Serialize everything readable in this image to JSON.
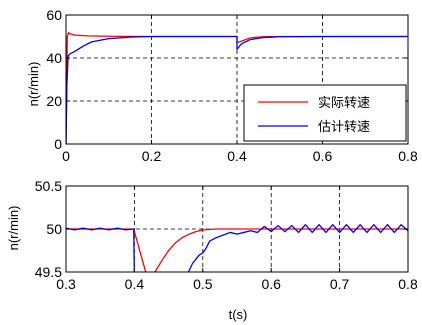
{
  "chart_data": [
    {
      "type": "line",
      "ylabel": "n(r/min)",
      "xlim": [
        0,
        0.8
      ],
      "ylim": [
        0,
        60
      ],
      "x_ticks": [
        "0",
        "0.2",
        "0.4",
        "0.6",
        "0.8"
      ],
      "y_ticks": [
        "0",
        "20",
        "40",
        "60"
      ],
      "grid": "dashed",
      "legend_position": "bottom-right",
      "series": [
        {
          "name": "实际转速",
          "color": "#ff0000",
          "x": [
            0,
            0.003,
            0.006,
            0.01,
            0.02,
            0.05,
            0.1,
            0.2,
            0.3,
            0.4,
            0.4,
            0.41,
            0.43,
            0.46,
            0.5,
            0.6,
            0.7,
            0.8
          ],
          "y": [
            0,
            50,
            51.8,
            51.2,
            50.7,
            50.3,
            50.1,
            50,
            50,
            50,
            47.2,
            47.8,
            49.3,
            49.9,
            50,
            50,
            50,
            50
          ]
        },
        {
          "name": "估计转速",
          "color": "#0000ff",
          "x": [
            0,
            0.002,
            0.005,
            0.01,
            0.02,
            0.04,
            0.06,
            0.1,
            0.15,
            0.2,
            0.3,
            0.4,
            0.4,
            0.41,
            0.43,
            0.46,
            0.5,
            0.6,
            0.7,
            0.8
          ],
          "y": [
            0,
            27,
            41,
            42,
            43,
            45.5,
            47.5,
            49,
            49.7,
            50,
            50,
            50,
            44,
            46.5,
            48.5,
            49.5,
            49.9,
            50,
            50,
            50
          ]
        }
      ]
    },
    {
      "type": "line",
      "xlabel": "t(s)",
      "ylabel": "n(r/min)",
      "xlim": [
        0.3,
        0.8
      ],
      "ylim": [
        49.5,
        50.5
      ],
      "x_ticks": [
        "0.3",
        "0.4",
        "0.5",
        "0.6",
        "0.7",
        "0.8"
      ],
      "y_ticks": [
        "49.5",
        "50",
        "50.5"
      ],
      "grid": "dashed",
      "series": [
        {
          "name": "实际转速",
          "color": "#ff0000",
          "x": [
            0.3,
            0.32,
            0.34,
            0.36,
            0.38,
            0.399,
            0.42,
            0.43,
            0.44,
            0.45,
            0.46,
            0.47,
            0.48,
            0.49,
            0.5,
            0.52,
            0.55,
            0.6,
            0.65,
            0.7,
            0.75,
            0.8
          ],
          "y": [
            50,
            50,
            50,
            50,
            50,
            50,
            49.4,
            49.5,
            49.63,
            49.75,
            49.84,
            49.9,
            49.94,
            49.97,
            49.99,
            50,
            50,
            50,
            50,
            50,
            50,
            50
          ]
        },
        {
          "name": "估计转速",
          "color": "#0000ff",
          "x": [
            0.3,
            0.3125,
            0.325,
            0.3375,
            0.35,
            0.3625,
            0.375,
            0.3875,
            0.399,
            0.4,
            0.476,
            0.485,
            0.495,
            0.5,
            0.505,
            0.51,
            0.52,
            0.53,
            0.54,
            0.55,
            0.56,
            0.57,
            0.58,
            0.59,
            0.6,
            0.61,
            0.62,
            0.63,
            0.64,
            0.65,
            0.66,
            0.67,
            0.68,
            0.69,
            0.7,
            0.71,
            0.72,
            0.73,
            0.74,
            0.75,
            0.76,
            0.77,
            0.78,
            0.79,
            0.8
          ],
          "y": [
            50.01,
            49.99,
            50.01,
            49.99,
            50.01,
            49.99,
            50.01,
            49.99,
            50,
            49.4,
            49.45,
            49.6,
            49.7,
            49.72,
            49.78,
            49.86,
            49.9,
            49.93,
            49.96,
            49.94,
            49.96,
            49.98,
            49.96,
            50.03,
            49.97,
            50.04,
            49.97,
            50.04,
            49.96,
            50.05,
            49.96,
            50.05,
            49.96,
            50.05,
            49.96,
            50.05,
            49.96,
            50.05,
            49.96,
            50.05,
            49.96,
            50.05,
            49.96,
            50.05,
            49.98
          ]
        }
      ]
    }
  ]
}
